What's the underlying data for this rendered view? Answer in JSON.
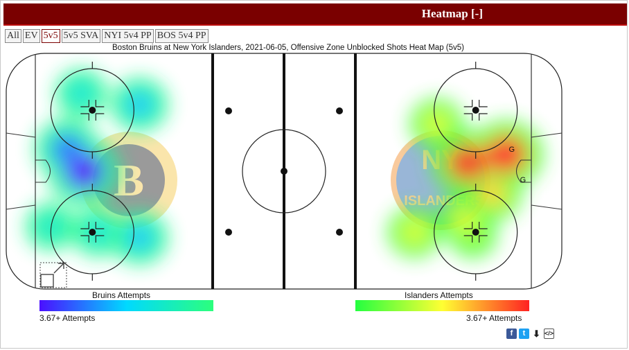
{
  "header": {
    "title": "Heatmap [-]"
  },
  "tabs": [
    {
      "label": "All",
      "active": false
    },
    {
      "label": "EV",
      "active": false
    },
    {
      "label": "5v5",
      "active": true
    },
    {
      "label": "5v5 SVA",
      "active": false
    },
    {
      "label": "NYI 5v4 PP",
      "active": false
    },
    {
      "label": "BOS 5v4 PP",
      "active": false
    }
  ],
  "chart_data": {
    "type": "heatmap",
    "title": "Boston Bruins at New York Islanders, 2021-06-05, Offensive Zone Unblocked Shots Heat Map (5v5)",
    "series": [
      {
        "name": "Bruins Attempts",
        "zone": "left",
        "scale_label": "3.67+ Attempts",
        "colors": [
          "#4b0fff",
          "#00d9ff",
          "#2cff7c"
        ],
        "hotspots": [
          {
            "x": -72,
            "y": 0,
            "intensity": 1.0
          },
          {
            "x": -78,
            "y": 8,
            "intensity": 0.75
          },
          {
            "x": -52,
            "y": 24,
            "intensity": 0.55
          },
          {
            "x": -52,
            "y": -24,
            "intensity": 0.55
          },
          {
            "x": -73,
            "y": 28,
            "intensity": 0.4
          },
          {
            "x": -67,
            "y": -22,
            "intensity": 0.4
          },
          {
            "x": -84,
            "y": -20,
            "intensity": 0.35
          }
        ]
      },
      {
        "name": "Islanders Attempts",
        "zone": "right",
        "scale_label": "3.67+ Attempts",
        "colors": [
          "#23ff40",
          "#ffff33",
          "#ff2222"
        ],
        "hotspots": [
          {
            "x": 80,
            "y": 6,
            "intensity": 1.0
          },
          {
            "x": 66,
            "y": 3,
            "intensity": 0.95
          },
          {
            "x": 75,
            "y": -8,
            "intensity": 0.6
          },
          {
            "x": 65,
            "y": -17,
            "intensity": 0.45
          },
          {
            "x": 55,
            "y": 17,
            "intensity": 0.45
          },
          {
            "x": 47,
            "y": -22,
            "intensity": 0.45
          },
          {
            "x": 68,
            "y": -23,
            "intensity": 0.3
          }
        ]
      }
    ],
    "markers": [
      {
        "label": "G",
        "x": 82,
        "y": 7
      },
      {
        "label": "G",
        "x": 86,
        "y": -4
      }
    ],
    "xlim": [
      -100,
      100
    ],
    "ylim": [
      -42.5,
      42.5
    ]
  }
}
